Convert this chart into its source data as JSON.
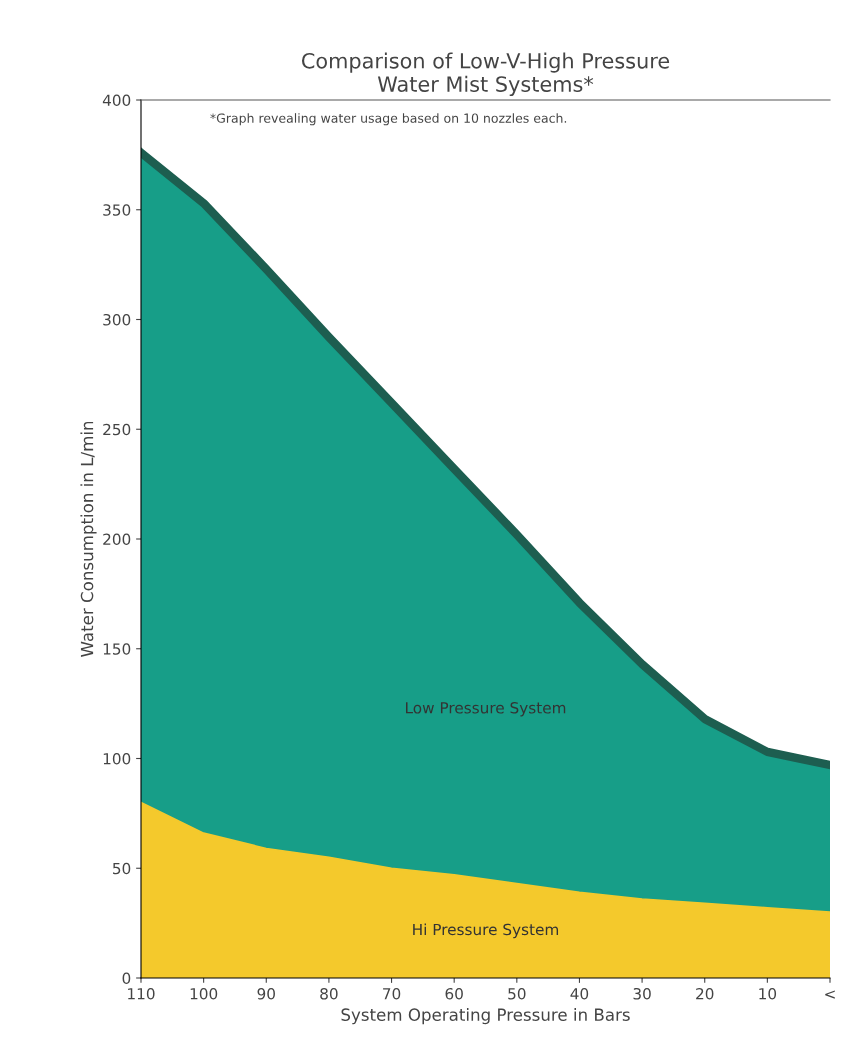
{
  "chart_data": {
    "type": "area",
    "title": "Comparison of Low-V-High Pressure\nWater Mist Systems*",
    "xlabel": "System Operating Pressure in Bars",
    "ylabel": "Water Consumption in L/min",
    "annotations": [
      "*Graph revealing water usage based on 10 nozzles each."
    ],
    "categories": [
      "110",
      "100",
      "90",
      "80",
      "70",
      "60",
      "50",
      "40",
      "30",
      "20",
      "10",
      "<"
    ],
    "series": [
      {
        "name": "Low Pressure System",
        "color": "#179e88",
        "values": [
          376,
          353,
          323,
          292,
          262,
          232,
          202,
          171,
          143,
          118,
          103,
          97
        ]
      },
      {
        "name": "Hi Pressure System",
        "color": "#f4c92c",
        "values": [
          80,
          66,
          59,
          55,
          50,
          47,
          43,
          39,
          36,
          34,
          32,
          30
        ]
      }
    ],
    "ylim": [
      0,
      400
    ],
    "yticks": [
      0,
      50,
      100,
      150,
      200,
      250,
      300,
      350,
      400
    ],
    "grid": false,
    "legend": false
  }
}
